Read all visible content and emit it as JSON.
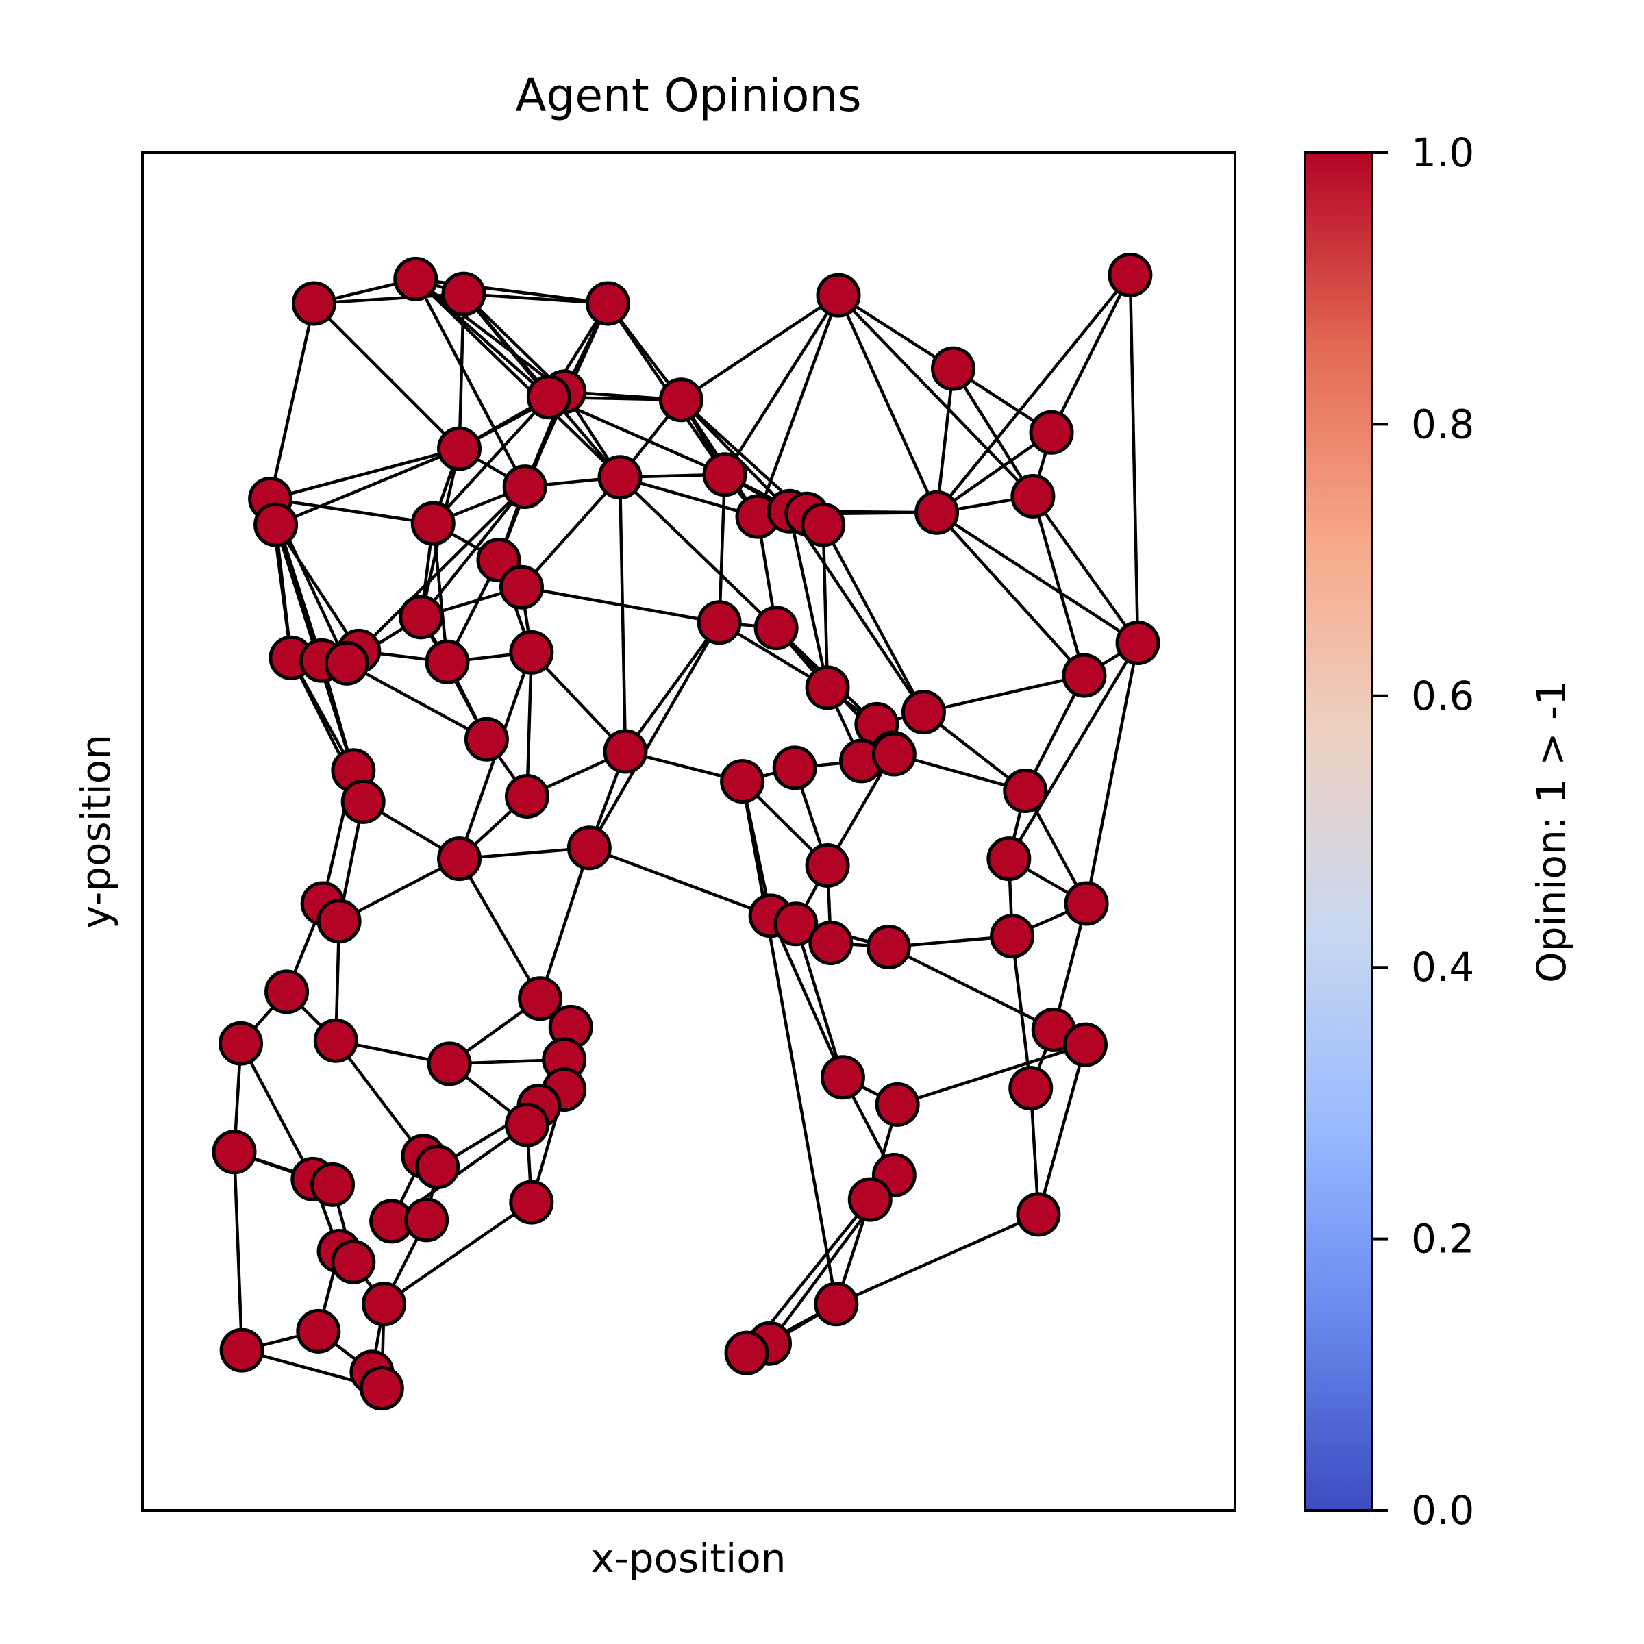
{
  "chart_data": {
    "type": "scatter",
    "title": "Agent Opinions",
    "xlabel": "x-position",
    "ylabel": "y-position",
    "xlim": [
      0,
      1
    ],
    "ylim": [
      0,
      1
    ],
    "grid": false,
    "node_color": "#b40426",
    "edge_color": "#000000",
    "colorbar": {
      "label": "Opinion: 1 > -1",
      "range": [
        0.0,
        1.0
      ],
      "ticks": [
        "0.0",
        "0.2",
        "0.4",
        "0.6",
        "0.8",
        "1.0"
      ],
      "colormap": "coolwarm",
      "stops": [
        "#3b4cc0",
        "#6889ee",
        "#9abbff",
        "#c9d8ef",
        "#edd1c2",
        "#f7a889",
        "#e26952",
        "#b40426"
      ]
    },
    "nodes": [
      {
        "x": 0.157,
        "y": 0.889
      },
      {
        "x": 0.25,
        "y": 0.907
      },
      {
        "x": 0.294,
        "y": 0.896
      },
      {
        "x": 0.426,
        "y": 0.889
      },
      {
        "x": 0.637,
        "y": 0.895
      },
      {
        "x": 0.904,
        "y": 0.91
      },
      {
        "x": 0.742,
        "y": 0.841
      },
      {
        "x": 0.832,
        "y": 0.794
      },
      {
        "x": 0.386,
        "y": 0.824
      },
      {
        "x": 0.372,
        "y": 0.82
      },
      {
        "x": 0.493,
        "y": 0.818
      },
      {
        "x": 0.29,
        "y": 0.782
      },
      {
        "x": 0.437,
        "y": 0.761
      },
      {
        "x": 0.533,
        "y": 0.763
      },
      {
        "x": 0.35,
        "y": 0.754
      },
      {
        "x": 0.117,
        "y": 0.745
      },
      {
        "x": 0.122,
        "y": 0.726
      },
      {
        "x": 0.266,
        "y": 0.727
      },
      {
        "x": 0.563,
        "y": 0.732
      },
      {
        "x": 0.592,
        "y": 0.736
      },
      {
        "x": 0.608,
        "y": 0.734
      },
      {
        "x": 0.623,
        "y": 0.726
      },
      {
        "x": 0.727,
        "y": 0.735
      },
      {
        "x": 0.815,
        "y": 0.747
      },
      {
        "x": 0.326,
        "y": 0.7
      },
      {
        "x": 0.347,
        "y": 0.68
      },
      {
        "x": 0.255,
        "y": 0.658
      },
      {
        "x": 0.528,
        "y": 0.654
      },
      {
        "x": 0.58,
        "y": 0.65
      },
      {
        "x": 0.911,
        "y": 0.639
      },
      {
        "x": 0.136,
        "y": 0.628
      },
      {
        "x": 0.198,
        "y": 0.633
      },
      {
        "x": 0.164,
        "y": 0.626
      },
      {
        "x": 0.187,
        "y": 0.624
      },
      {
        "x": 0.279,
        "y": 0.625
      },
      {
        "x": 0.356,
        "y": 0.632
      },
      {
        "x": 0.862,
        "y": 0.615
      },
      {
        "x": 0.627,
        "y": 0.606
      },
      {
        "x": 0.715,
        "y": 0.588
      },
      {
        "x": 0.672,
        "y": 0.579
      },
      {
        "x": 0.687,
        "y": 0.558
      },
      {
        "x": 0.658,
        "y": 0.552
      },
      {
        "x": 0.688,
        "y": 0.557
      },
      {
        "x": 0.315,
        "y": 0.568
      },
      {
        "x": 0.442,
        "y": 0.559
      },
      {
        "x": 0.549,
        "y": 0.537
      },
      {
        "x": 0.597,
        "y": 0.547
      },
      {
        "x": 0.193,
        "y": 0.545
      },
      {
        "x": 0.202,
        "y": 0.522
      },
      {
        "x": 0.352,
        "y": 0.526
      },
      {
        "x": 0.808,
        "y": 0.53
      },
      {
        "x": 0.29,
        "y": 0.48
      },
      {
        "x": 0.409,
        "y": 0.488
      },
      {
        "x": 0.627,
        "y": 0.475
      },
      {
        "x": 0.793,
        "y": 0.48
      },
      {
        "x": 0.165,
        "y": 0.447
      },
      {
        "x": 0.18,
        "y": 0.434
      },
      {
        "x": 0.575,
        "y": 0.438
      },
      {
        "x": 0.598,
        "y": 0.432
      },
      {
        "x": 0.63,
        "y": 0.418
      },
      {
        "x": 0.683,
        "y": 0.415
      },
      {
        "x": 0.864,
        "y": 0.447
      },
      {
        "x": 0.796,
        "y": 0.423
      },
      {
        "x": 0.132,
        "y": 0.382
      },
      {
        "x": 0.364,
        "y": 0.377
      },
      {
        "x": 0.392,
        "y": 0.356
      },
      {
        "x": 0.09,
        "y": 0.344
      },
      {
        "x": 0.177,
        "y": 0.346
      },
      {
        "x": 0.281,
        "y": 0.329
      },
      {
        "x": 0.386,
        "y": 0.332
      },
      {
        "x": 0.834,
        "y": 0.354
      },
      {
        "x": 0.863,
        "y": 0.343
      },
      {
        "x": 0.641,
        "y": 0.319
      },
      {
        "x": 0.386,
        "y": 0.31
      },
      {
        "x": 0.691,
        "y": 0.299
      },
      {
        "x": 0.363,
        "y": 0.298
      },
      {
        "x": 0.813,
        "y": 0.311
      },
      {
        "x": 0.084,
        "y": 0.264
      },
      {
        "x": 0.352,
        "y": 0.284
      },
      {
        "x": 0.156,
        "y": 0.244
      },
      {
        "x": 0.174,
        "y": 0.24
      },
      {
        "x": 0.257,
        "y": 0.261
      },
      {
        "x": 0.27,
        "y": 0.253
      },
      {
        "x": 0.688,
        "y": 0.247
      },
      {
        "x": 0.356,
        "y": 0.227
      },
      {
        "x": 0.666,
        "y": 0.229
      },
      {
        "x": 0.228,
        "y": 0.213
      },
      {
        "x": 0.26,
        "y": 0.214
      },
      {
        "x": 0.82,
        "y": 0.218
      },
      {
        "x": 0.18,
        "y": 0.191
      },
      {
        "x": 0.193,
        "y": 0.183
      },
      {
        "x": 0.221,
        "y": 0.152
      },
      {
        "x": 0.635,
        "y": 0.152
      },
      {
        "x": 0.091,
        "y": 0.118
      },
      {
        "x": 0.161,
        "y": 0.132
      },
      {
        "x": 0.21,
        "y": 0.102
      },
      {
        "x": 0.219,
        "y": 0.09
      },
      {
        "x": 0.574,
        "y": 0.123
      },
      {
        "x": 0.553,
        "y": 0.116
      }
    ],
    "edges": [
      [
        0,
        1
      ],
      [
        0,
        2
      ],
      [
        0,
        11
      ],
      [
        0,
        15
      ],
      [
        1,
        2
      ],
      [
        1,
        3
      ],
      [
        1,
        8
      ],
      [
        1,
        12
      ],
      [
        1,
        14
      ],
      [
        2,
        3
      ],
      [
        2,
        8
      ],
      [
        2,
        9
      ],
      [
        2,
        11
      ],
      [
        2,
        12
      ],
      [
        3,
        8
      ],
      [
        3,
        9
      ],
      [
        3,
        10
      ],
      [
        3,
        13
      ],
      [
        3,
        14
      ],
      [
        4,
        6
      ],
      [
        4,
        10
      ],
      [
        4,
        13
      ],
      [
        4,
        18
      ],
      [
        4,
        23
      ],
      [
        4,
        22
      ],
      [
        5,
        7
      ],
      [
        5,
        22
      ],
      [
        5,
        29
      ],
      [
        6,
        7
      ],
      [
        6,
        22
      ],
      [
        6,
        23
      ],
      [
        7,
        22
      ],
      [
        7,
        23
      ],
      [
        8,
        9
      ],
      [
        8,
        10
      ],
      [
        8,
        11
      ],
      [
        8,
        12
      ],
      [
        8,
        14
      ],
      [
        8,
        24
      ],
      [
        9,
        10
      ],
      [
        9,
        11
      ],
      [
        9,
        13
      ],
      [
        9,
        17
      ],
      [
        10,
        13
      ],
      [
        10,
        18
      ],
      [
        10,
        19
      ],
      [
        10,
        20
      ],
      [
        10,
        12
      ],
      [
        11,
        15
      ],
      [
        11,
        16
      ],
      [
        11,
        17
      ],
      [
        11,
        26
      ],
      [
        11,
        14
      ],
      [
        12,
        14
      ],
      [
        12,
        25
      ],
      [
        12,
        13
      ],
      [
        12,
        18
      ],
      [
        12,
        28
      ],
      [
        13,
        18
      ],
      [
        13,
        27
      ],
      [
        13,
        19
      ],
      [
        13,
        21
      ],
      [
        14,
        17
      ],
      [
        14,
        24
      ],
      [
        14,
        26
      ],
      [
        14,
        31
      ],
      [
        15,
        16
      ],
      [
        15,
        17
      ],
      [
        15,
        30
      ],
      [
        15,
        32
      ],
      [
        15,
        33
      ],
      [
        16,
        30
      ],
      [
        16,
        31
      ],
      [
        16,
        47
      ],
      [
        17,
        24
      ],
      [
        17,
        26
      ],
      [
        17,
        34
      ],
      [
        18,
        19
      ],
      [
        18,
        20
      ],
      [
        18,
        28
      ],
      [
        18,
        21
      ],
      [
        19,
        20
      ],
      [
        19,
        22
      ],
      [
        19,
        37
      ],
      [
        20,
        21
      ],
      [
        20,
        22
      ],
      [
        21,
        37
      ],
      [
        21,
        38
      ],
      [
        22,
        29
      ],
      [
        22,
        36
      ],
      [
        22,
        23
      ],
      [
        23,
        29
      ],
      [
        23,
        36
      ],
      [
        24,
        25
      ],
      [
        24,
        34
      ],
      [
        24,
        35
      ],
      [
        25,
        27
      ],
      [
        25,
        35
      ],
      [
        25,
        26
      ],
      [
        26,
        33
      ],
      [
        26,
        34
      ],
      [
        26,
        43
      ],
      [
        27,
        44
      ],
      [
        27,
        28
      ],
      [
        27,
        37
      ],
      [
        28,
        37
      ],
      [
        28,
        39
      ],
      [
        28,
        40
      ],
      [
        29,
        36
      ],
      [
        29,
        61
      ],
      [
        29,
        54
      ],
      [
        30,
        31
      ],
      [
        30,
        47
      ],
      [
        30,
        48
      ],
      [
        31,
        33
      ],
      [
        31,
        34
      ],
      [
        32,
        33
      ],
      [
        32,
        47
      ],
      [
        33,
        43
      ],
      [
        34,
        43
      ],
      [
        34,
        35
      ],
      [
        35,
        44
      ],
      [
        35,
        49
      ],
      [
        35,
        51
      ],
      [
        36,
        50
      ],
      [
        36,
        38
      ],
      [
        37,
        39
      ],
      [
        37,
        41
      ],
      [
        38,
        50
      ],
      [
        38,
        39
      ],
      [
        39,
        40
      ],
      [
        39,
        42
      ],
      [
        40,
        41
      ],
      [
        40,
        53
      ],
      [
        41,
        46
      ],
      [
        42,
        50
      ],
      [
        43,
        49
      ],
      [
        44,
        45
      ],
      [
        44,
        52
      ],
      [
        44,
        49
      ],
      [
        45,
        46
      ],
      [
        45,
        53
      ],
      [
        45,
        57
      ],
      [
        46,
        53
      ],
      [
        47,
        48
      ],
      [
        47,
        55
      ],
      [
        48,
        51
      ],
      [
        48,
        56
      ],
      [
        49,
        51
      ],
      [
        50,
        54
      ],
      [
        50,
        61
      ],
      [
        51,
        52
      ],
      [
        51,
        56
      ],
      [
        51,
        64
      ],
      [
        52,
        57
      ],
      [
        52,
        64
      ],
      [
        53,
        58
      ],
      [
        53,
        59
      ],
      [
        54,
        61
      ],
      [
        54,
        62
      ],
      [
        55,
        56
      ],
      [
        55,
        63
      ],
      [
        56,
        67
      ],
      [
        57,
        58
      ],
      [
        57,
        60
      ],
      [
        58,
        59
      ],
      [
        58,
        72
      ],
      [
        59,
        60
      ],
      [
        60,
        62
      ],
      [
        60,
        71
      ],
      [
        61,
        62
      ],
      [
        61,
        70
      ],
      [
        62,
        76
      ],
      [
        63,
        66
      ],
      [
        63,
        67
      ],
      [
        64,
        65
      ],
      [
        64,
        68
      ],
      [
        65,
        69
      ],
      [
        65,
        73
      ],
      [
        66,
        77
      ],
      [
        66,
        79
      ],
      [
        67,
        68
      ],
      [
        67,
        81
      ],
      [
        68,
        69
      ],
      [
        68,
        78
      ],
      [
        69,
        75
      ],
      [
        70,
        71
      ],
      [
        70,
        76
      ],
      [
        71,
        74
      ],
      [
        71,
        88
      ],
      [
        72,
        74
      ],
      [
        72,
        83
      ],
      [
        73,
        75
      ],
      [
        73,
        84
      ],
      [
        74,
        85
      ],
      [
        75,
        82
      ],
      [
        76,
        88
      ],
      [
        77,
        79
      ],
      [
        77,
        80
      ],
      [
        77,
        93
      ],
      [
        78,
        84
      ],
      [
        78,
        86
      ],
      [
        79,
        80
      ],
      [
        79,
        89
      ],
      [
        80,
        90
      ],
      [
        81,
        82
      ],
      [
        81,
        86
      ],
      [
        82,
        87
      ],
      [
        83,
        85
      ],
      [
        84,
        91
      ],
      [
        85,
        92
      ],
      [
        86,
        87
      ],
      [
        87,
        91
      ],
      [
        88,
        92
      ],
      [
        89,
        90
      ],
      [
        89,
        94
      ],
      [
        90,
        91
      ],
      [
        91,
        95
      ],
      [
        91,
        96
      ],
      [
        92,
        97
      ],
      [
        92,
        98
      ],
      [
        93,
        94
      ],
      [
        93,
        96
      ],
      [
        94,
        95
      ],
      [
        95,
        96
      ],
      [
        83,
        97
      ],
      [
        85,
        98
      ],
      [
        45,
        92
      ],
      [
        57,
        72
      ],
      [
        52,
        27
      ],
      [
        12,
        44
      ],
      [
        19,
        38
      ],
      [
        1,
        9
      ]
    ]
  }
}
